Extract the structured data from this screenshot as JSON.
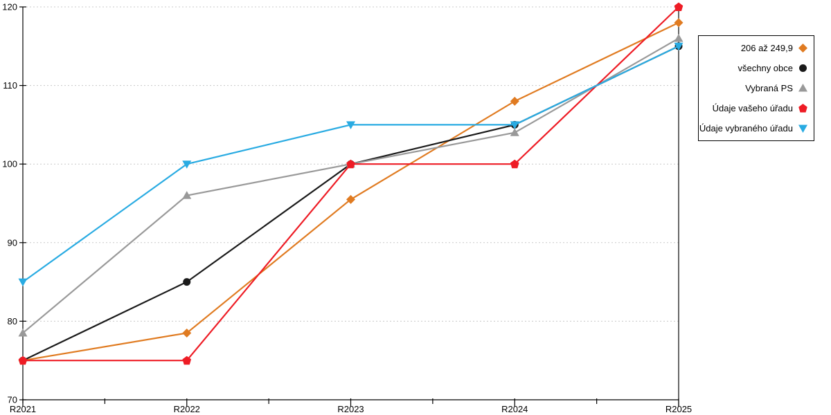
{
  "chart_data": {
    "type": "line",
    "x": [
      "R2021",
      "R2022",
      "R2023",
      "R2024",
      "R2025"
    ],
    "ylim": [
      70,
      120
    ],
    "yticks": [
      70,
      80,
      90,
      100,
      110,
      120
    ],
    "grid": "horizontal-dashed",
    "grid_color": "#c8c8c8",
    "axis_color": "#000000",
    "legend_position": "right-outside",
    "series": [
      {
        "name": "206 až 249,9",
        "color": "#E07B21",
        "marker": "diamond",
        "values": [
          75,
          78.5,
          95.5,
          108,
          118
        ]
      },
      {
        "name": "všechny obce",
        "color": "#1A1A1A",
        "marker": "circle",
        "values": [
          75,
          85,
          100,
          105,
          115
        ]
      },
      {
        "name": "Vybraná PS",
        "color": "#999999",
        "marker": "triangle-up",
        "values": [
          78.5,
          96,
          100,
          104,
          116
        ]
      },
      {
        "name": "Údaje vašeho úřadu",
        "color": "#EE1C25",
        "marker": "pentagon",
        "values": [
          75,
          75,
          100,
          100,
          120
        ]
      },
      {
        "name": "Údaje vybraného úřadu",
        "color": "#29ABE2",
        "marker": "triangle-down",
        "values": [
          85,
          100,
          105,
          105,
          115
        ]
      }
    ]
  }
}
